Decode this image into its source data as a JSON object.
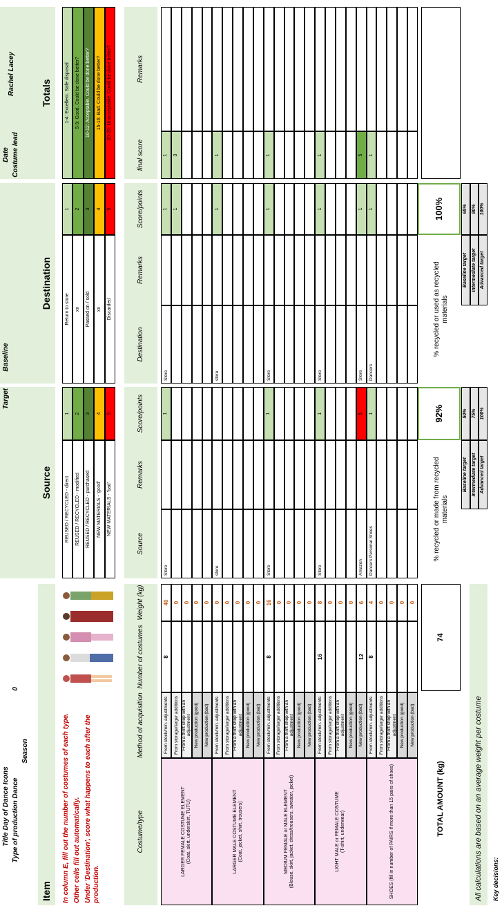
{
  "header": {
    "title": "Title  Day of Dance Icons",
    "production": "Type of production  Dance",
    "season": "Season",
    "season_value": "0",
    "target": "Target",
    "baseline": "Baseline",
    "date": "Date",
    "costume_lead_label": "Costume lead",
    "costume_lead": "Rachel Lacey"
  },
  "sections": {
    "item": "Item",
    "source": "Source",
    "destination": "Destination",
    "totals": "Totals"
  },
  "instructions": [
    "In column E, fill out the number of costumes of each type.",
    "Other cells fill out automatically.",
    "Under 'Destination', score what happens to each after the production."
  ],
  "source_legend": [
    {
      "label": "REUSED / RECYCLED - direct",
      "score": "1",
      "color": "#c6e0b4"
    },
    {
      "label": "REUSED / RECYCLED - modified",
      "score": "2",
      "color": "#70ad47"
    },
    {
      "label": "REUSED / RECYCLED - purchased",
      "score": "3",
      "color": "#548235"
    },
    {
      "label": "NEW MATERIALS - 'good'",
      "score": "4",
      "color": "#ffc000"
    },
    {
      "label": "NEW MATERIALS - 'bad'",
      "score": "5",
      "color": "#ff0000"
    }
  ],
  "destination_legend": [
    {
      "label": "Return to store",
      "score": "1",
      "color": "#c6e0b4"
    },
    {
      "label": "xx",
      "score": "2",
      "color": "#70ad47"
    },
    {
      "label": "Passed on / sold",
      "score": "3",
      "color": "#548235"
    },
    {
      "label": "xx",
      "score": "4",
      "color": "#ffc000"
    },
    {
      "label": "Discarded",
      "score": "5",
      "color": "#ff0000"
    }
  ],
  "totals_legend": [
    {
      "label": "1-4: Excellent. Safe disposal",
      "color": "#c6e0b4"
    },
    {
      "label": "5-9: Good. Could be done better?",
      "color": "#70ad47"
    },
    {
      "label": "10-12: Acceptable. Could be done better?",
      "color": "#548235"
    },
    {
      "label": "15-16: Bad. Could be done better?",
      "color": "#ffc000"
    },
    {
      "label": "20-25: Unacceptable. Could be done better?",
      "color": "#ff0000"
    }
  ],
  "columns": {
    "costume_type": "Costume/type",
    "method": "Method of acquisition",
    "number": "Number of costumes",
    "weight": "Weight (kg)",
    "source": "Source",
    "source_remarks": "Remarks",
    "source_score": "Score/points",
    "destination": "Destination",
    "destination_remarks": "Remarks",
    "destination_score": "Score/points",
    "final_score": "final score",
    "remarks": "Remarks"
  },
  "groups": [
    {
      "name": "LARGER FEMALE COSTUME ELEMENT",
      "desc": "(Coat, skirt, underskirt, TUTU)",
      "rows": [
        {
          "method": "From stock/min. adjustments",
          "number": "8",
          "weight": "40",
          "source": "Store",
          "source_score": "1",
          "source_color": "#c6e0b4",
          "destination": "Store",
          "destination_score": "1",
          "final_score": "1",
          "final_color": "#c6e0b4"
        },
        {
          "method": "From storage/larger additions",
          "weight": "0",
          "destination_score": "1",
          "final_score": "3",
          "final_color": "#c6e0b4"
        },
        {
          "method": "From a thrift shop with an adjustment",
          "weight": "0"
        },
        {
          "method": "New production (good)",
          "weight": "0"
        },
        {
          "method": "New production (bad)",
          "weight": "0"
        }
      ]
    },
    {
      "name": "LARGER MALE COSTUME ELEMENT",
      "desc": "(Coat, jacket, shirt, trousers)",
      "rows": [
        {
          "method": "From stock/min. adjustments",
          "weight": "0",
          "source": "store",
          "destination": "store",
          "destination_score": "1",
          "final_score": "1",
          "final_color": "#c6e0b4"
        },
        {
          "method": "From storage/larger additions",
          "weight": "0"
        },
        {
          "method": "From a thrift shop with an adjustment",
          "weight": "0"
        },
        {
          "method": "New production (good)",
          "weight": "0"
        },
        {
          "method": "New production (bad)",
          "weight": "0"
        }
      ]
    },
    {
      "name": "MEDIUM FEMALE or MALE ELEMENT",
      "desc": "(Blouse, skirt, jacket, dress/trousers, sweater, jacket)",
      "rows": [
        {
          "method": "From stock/min. adjustments",
          "number": "8",
          "weight": "16",
          "source": "Store",
          "source_score": "1",
          "source_color": "#c6e0b4",
          "destination": "Store",
          "destination_score": "1",
          "final_score": "1",
          "final_color": "#c6e0b4"
        },
        {
          "method": "From storage/larger additions",
          "weight": "0"
        },
        {
          "method": "From a thrift shop with an adjustment",
          "weight": "0"
        },
        {
          "method": "New production (good)",
          "weight": "0"
        },
        {
          "method": "New production (bad)",
          "weight": "0"
        }
      ]
    },
    {
      "name": "LIGHT MALE or FEMALE COSTUME",
      "desc": "(T-shirt, underwear)",
      "rows": [
        {
          "method": "From stock/min. adjustments",
          "number": "16",
          "weight": "8",
          "source": "Store",
          "source_score": "1",
          "source_color": "#c6e0b4",
          "destination": "Store",
          "destination_score": "1",
          "final_score": "1",
          "final_color": "#c6e0b4"
        },
        {
          "method": "From storage/larger additions",
          "weight": "0"
        },
        {
          "method": "From a thrift shop with an adjustment",
          "weight": "0"
        },
        {
          "method": "New production (good)",
          "weight": "0"
        },
        {
          "method": "New production (bad)",
          "number": "12",
          "weight": "6",
          "source": "Amazon",
          "source_score": "5",
          "source_color": "#ff0000",
          "destination": "Store",
          "destination_score": "1",
          "final_score": "5",
          "final_color": "#70ad47"
        }
      ]
    },
    {
      "name": "SHOES (fill in number of PAIRS if more than 15 pairs of shoes)",
      "rows": [
        {
          "method": "From stock/min. adjustments",
          "number": "8",
          "weight": "4",
          "source": "Dancers Personal Shoes",
          "source_score": "1",
          "source_color": "#c6e0b4",
          "destination": "Dancers",
          "destination_score": "1",
          "final_score": "1",
          "final_color": "#c6e0b4"
        },
        {
          "method": "From storage/larger additions",
          "weight": "0"
        },
        {
          "method": "From a thrift shop with an adjustment",
          "weight": "0"
        },
        {
          "method": "New production (good)",
          "weight": "0"
        },
        {
          "method": "New production (bad)",
          "weight": "0"
        }
      ]
    }
  ],
  "totals": {
    "total_label": "TOTAL AMOUNT (kg)",
    "total_weight": "74",
    "source_label": "% recycled or made from recycled materials",
    "source_pct": "92%",
    "destination_label": "% recycled or used as recycled materials",
    "destination_pct": "100%",
    "source_targets": [
      {
        "label": "Baseline target",
        "value": "50%"
      },
      {
        "label": "Intermediate target",
        "value": "75%"
      },
      {
        "label": "Advanced target",
        "value": "100%"
      }
    ],
    "destination_targets": [
      {
        "label": "Baseline target",
        "value": "65%"
      },
      {
        "label": "Intermediate target",
        "value": "80%"
      },
      {
        "label": "Advanced target",
        "value": "100%"
      }
    ]
  },
  "footer": {
    "note": "All calculations are based on an average weight per costume",
    "key_decisions": "Key decisions:"
  }
}
